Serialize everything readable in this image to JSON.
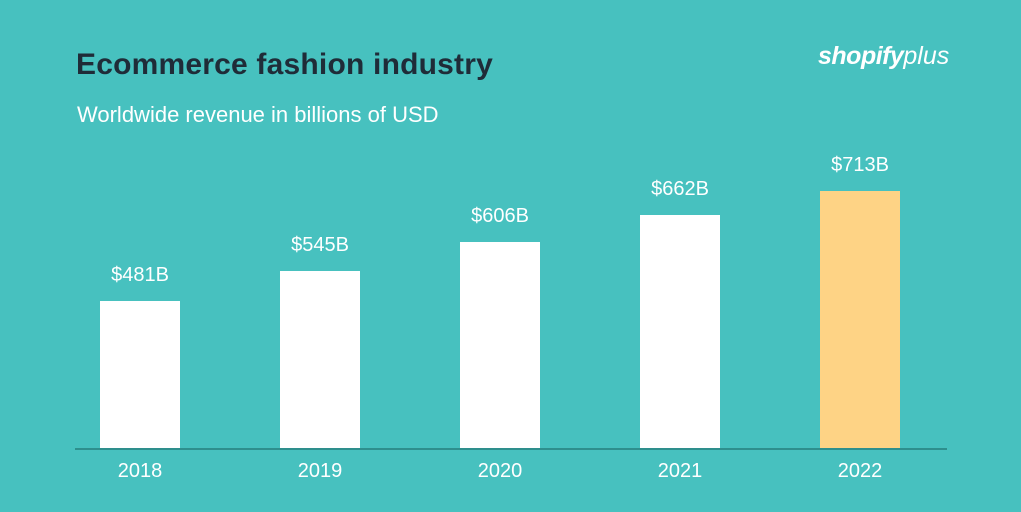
{
  "header": {
    "title": "Ecommerce fashion industry",
    "subtitle": "Worldwide revenue in billions of USD"
  },
  "logo": {
    "bold": "shopify",
    "light": "plus"
  },
  "colors": {
    "background": "#47c1bf",
    "bar": "#ffffff",
    "highlight_bar": "#fed385",
    "title": "#1f2c38",
    "axis": "#2e8f8d"
  },
  "chart_data": {
    "type": "bar",
    "title": "Ecommerce fashion industry",
    "subtitle": "Worldwide revenue in billions of USD",
    "xlabel": "",
    "ylabel": "",
    "categories": [
      "2018",
      "2019",
      "2020",
      "2021",
      "2022"
    ],
    "values": [
      481,
      545,
      606,
      662,
      713
    ],
    "value_labels": [
      "$481B",
      "$545B",
      "$606B",
      "$662B",
      "$713B"
    ],
    "highlighted_category": "2022",
    "unit": "billions of USD",
    "grid": false,
    "legend": null
  }
}
